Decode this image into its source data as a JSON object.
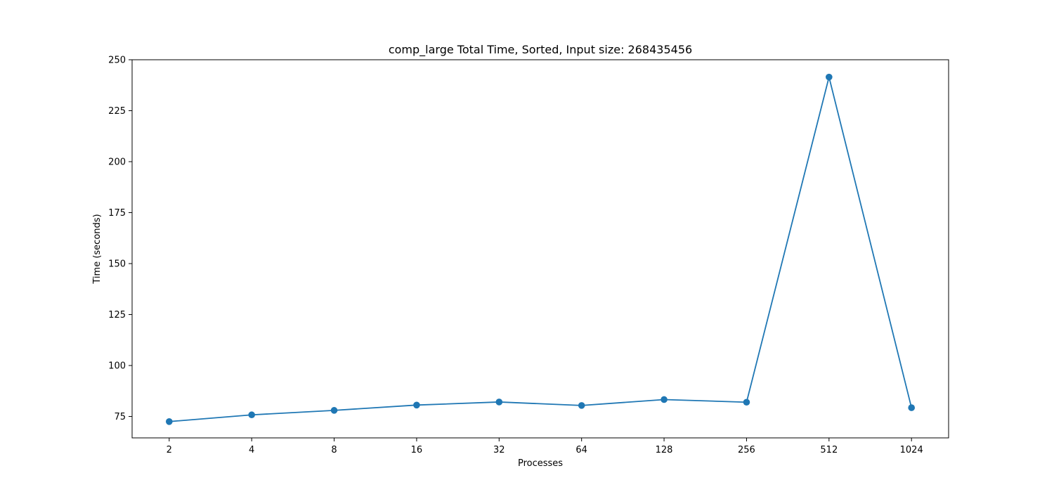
{
  "chart_data": {
    "type": "line",
    "title": "comp_large Total Time, Sorted, Input size: 268435456",
    "xlabel": "Processes",
    "ylabel": "Time (seconds)",
    "categories": [
      "2",
      "4",
      "8",
      "16",
      "32",
      "64",
      "128",
      "256",
      "512",
      "1024"
    ],
    "series": [
      {
        "values": [
          72.5,
          75.8,
          78.0,
          80.6,
          82.1,
          80.4,
          83.3,
          82.0,
          241.5,
          79.3
        ],
        "color": "#1f77b4",
        "marker": "circle"
      }
    ],
    "ylim": [
      64.5,
      250.0
    ],
    "yticks": [
      75,
      100,
      125,
      150,
      175,
      200,
      225,
      250
    ],
    "grid": false,
    "legend": "none"
  }
}
